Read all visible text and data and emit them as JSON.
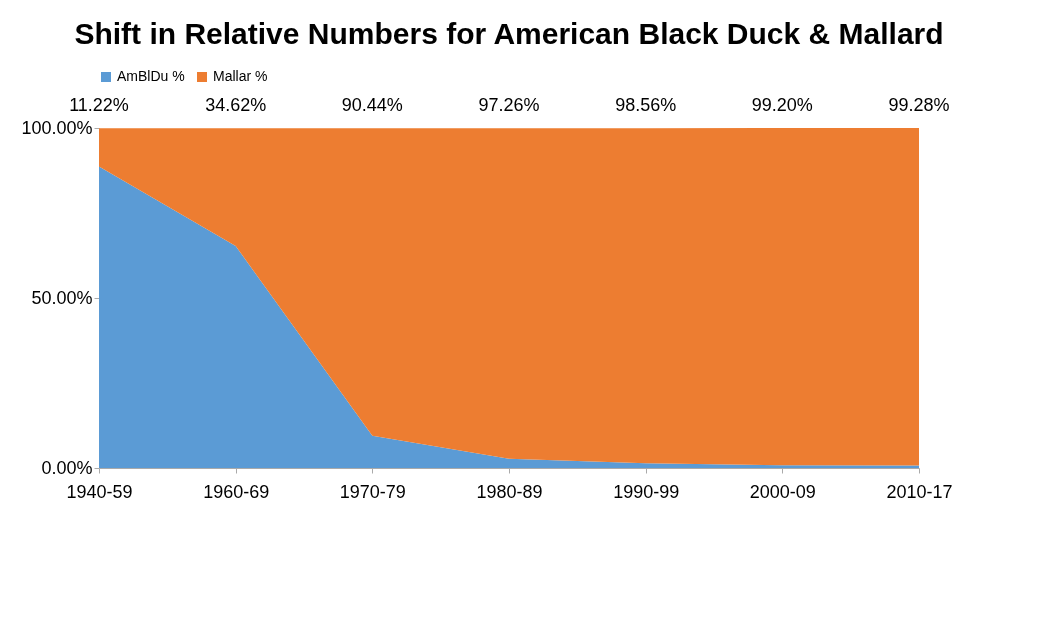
{
  "chart_data": {
    "type": "area",
    "title": "Shift in Relative Numbers for American Black Duck & Mallard",
    "categories": [
      "1940-59",
      "1960-69",
      "1970-79",
      "1980-89",
      "1990-99",
      "2000-09",
      "2010-17"
    ],
    "stacked": true,
    "series": [
      {
        "name": "AmBlDu %",
        "color": "#5b9bd5",
        "values": [
          88.7,
          65.3,
          9.5,
          2.7,
          1.4,
          0.8,
          0.7
        ]
      },
      {
        "name": "Mallar %",
        "color": "#ed7d31",
        "values": [
          11.22,
          34.62,
          90.44,
          97.26,
          98.56,
          99.2,
          99.28
        ],
        "value_labels": [
          "11.22%",
          "34.62%",
          "90.44%",
          "97.26%",
          "98.56%",
          "99.20%",
          "99.28%"
        ]
      }
    ],
    "ylim": [
      0,
      100
    ],
    "yticks": [
      {
        "value": 0,
        "label": "0.00%"
      },
      {
        "value": 50,
        "label": "50.00%"
      },
      {
        "value": 100,
        "label": "100.00%"
      }
    ],
    "legend": "top",
    "grid": false
  }
}
